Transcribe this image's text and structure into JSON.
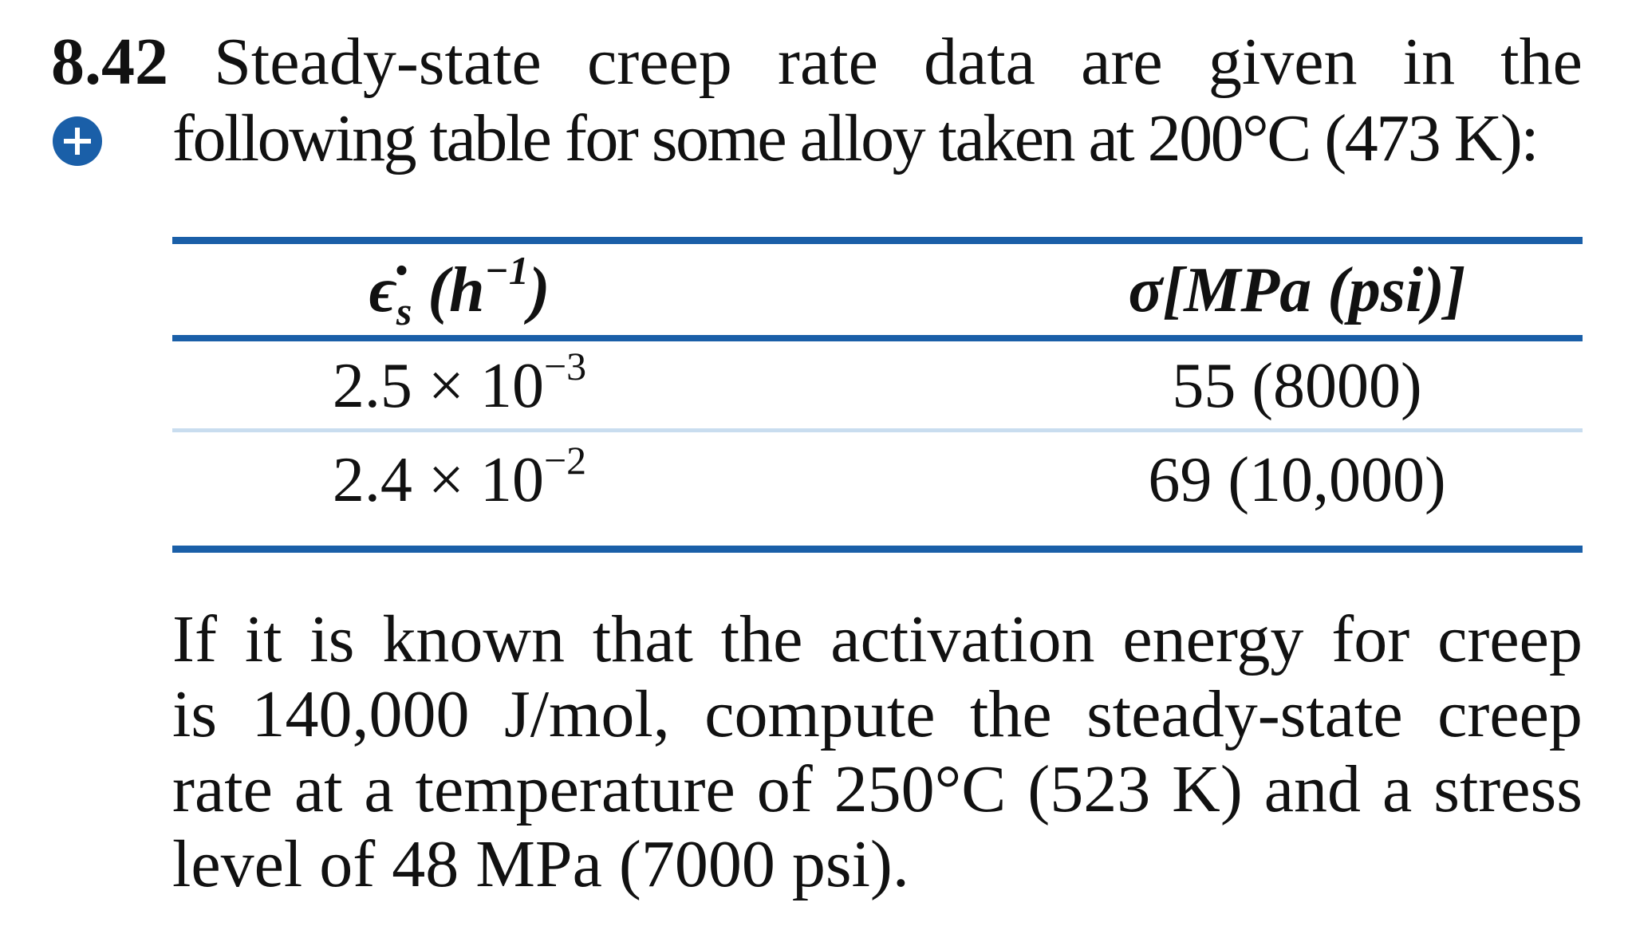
{
  "problem": {
    "number": "8.42",
    "intro_line1": [
      "Steady-state",
      "creep",
      "rate",
      "data",
      "are",
      "given",
      "in",
      "the"
    ],
    "intro_line2": "following table for some alloy taken at 200°C (473 K):",
    "plus_icon_color": "#1a5fa8"
  },
  "table": {
    "headers": {
      "col1_main": "ϵ̇",
      "col1_sub": "s",
      "col1_unit_open": " (h",
      "col1_unit_sup": "−1",
      "col1_unit_close": ")",
      "col2": "σ[MPa (psi)]"
    },
    "rows": [
      {
        "strain_base": "2.5 × 10",
        "strain_exp": "−3",
        "stress": "55 (8000)"
      },
      {
        "strain_base": "2.4 × 10",
        "strain_exp": "−2",
        "stress": "69 (10,000)"
      }
    ],
    "rule_color": "#1a5fa8"
  },
  "question": {
    "lines": [
      [
        "If",
        "it",
        "is",
        "known",
        "that",
        "the",
        "activation",
        "energy",
        "for",
        "creep"
      ],
      [
        "is",
        "140,000",
        "J/mol,",
        "compute",
        "the",
        "steady-state",
        "creep"
      ],
      [
        "rate",
        "at",
        "a",
        "temperature",
        "of",
        "250°C",
        "(523",
        "K)",
        "and",
        "a",
        "stress"
      ],
      [
        "level of 48 MPa (7000 psi)."
      ]
    ]
  }
}
